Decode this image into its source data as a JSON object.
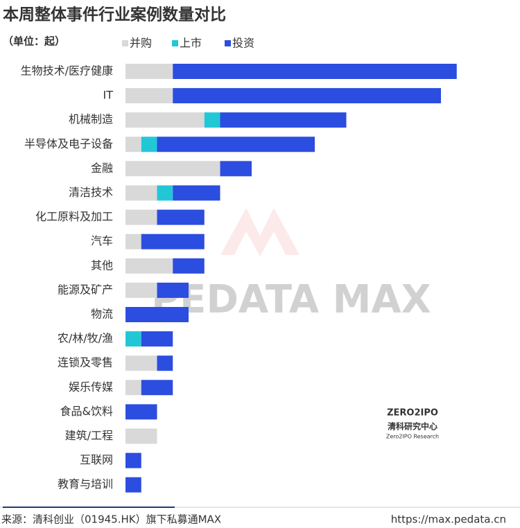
{
  "chart_data": {
    "type": "stacked-bar",
    "orientation": "horizontal",
    "title": "本周整体事件行业案例数量对比",
    "subtitle": "（单位：起）",
    "categories": [
      "生物技术/医疗健康",
      "IT",
      "机械制造",
      "半导体及电子设备",
      "金融",
      "清洁技术",
      "化工原料及加工",
      "汽车",
      "其他",
      "能源及矿产",
      "物流",
      "农/林/牧/渔",
      "连锁及零售",
      "娱乐传媒",
      "食品&饮料",
      "建筑/工程",
      "互联网",
      "教育与培训"
    ],
    "series": [
      {
        "name": "并购",
        "color": "#d9d9d9",
        "values": [
          3,
          3,
          5,
          1,
          6,
          2,
          2,
          1,
          3,
          2,
          0,
          0,
          2,
          1,
          0,
          2,
          0,
          0
        ]
      },
      {
        "name": "上市",
        "color": "#22c7d6",
        "values": [
          0,
          0,
          1,
          1,
          0,
          1,
          0,
          0,
          0,
          0,
          0,
          1,
          0,
          0,
          0,
          0,
          0,
          0
        ]
      },
      {
        "name": "投资",
        "color": "#2b4de0",
        "values": [
          18,
          17,
          8,
          10,
          2,
          3,
          3,
          4,
          2,
          2,
          4,
          2,
          1,
          2,
          2,
          0,
          1,
          1
        ]
      }
    ],
    "watermark": "PEDATA MAX",
    "logo": {
      "brand": "ZERO2IPO",
      "name": "清科研究中心",
      "sub": "Zero2IPO Research"
    },
    "source": "来源：清科创业（01945.HK）旗下私募通MAX",
    "url": "https://max.pedata.cn"
  }
}
